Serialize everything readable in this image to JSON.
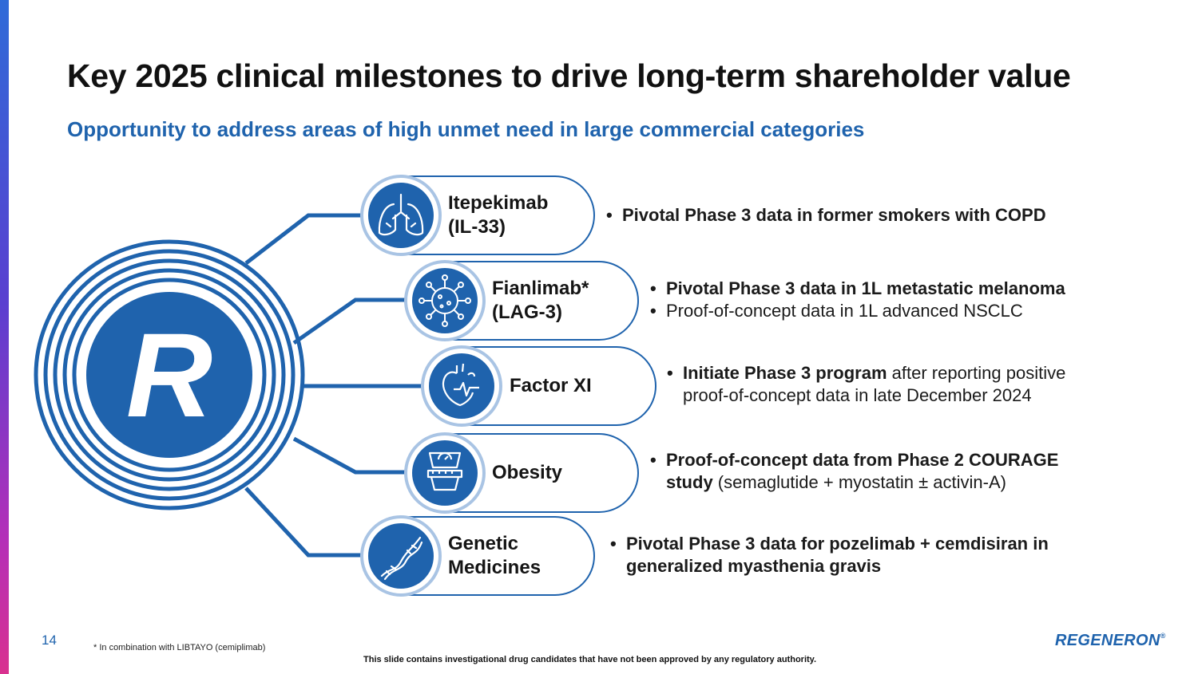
{
  "header": {
    "title": "Key 2025 clinical milestones to drive long-term shareholder value",
    "subtitle": "Opportunity to address areas of high unmet need in large commercial categories"
  },
  "logo": {
    "letter": "R"
  },
  "milestones": [
    {
      "label": "Itepekimab\n(IL-33)",
      "icon": "lungs-icon",
      "bullets": [
        {
          "strong": "Pivotal Phase 3 data in former smokers with COPD",
          "text": ""
        }
      ]
    },
    {
      "label": "Fianlimab*\n(LAG-3)",
      "icon": "cell-icon",
      "bullets": [
        {
          "strong": "Pivotal Phase 3 data in 1L metastatic melanoma",
          "text": ""
        },
        {
          "strong": "",
          "text": "Proof-of-concept data in 1L advanced NSCLC"
        }
      ]
    },
    {
      "label": "Factor XI",
      "icon": "heart-icon",
      "bullets": [
        {
          "strong": "Initiate Phase 3 program",
          "text": " after reporting positive proof-of-concept data in late December 2024"
        }
      ]
    },
    {
      "label": "Obesity",
      "icon": "scale-icon",
      "bullets": [
        {
          "strong": "Proof-of-concept data from Phase 2 COURAGE study",
          "text": " (semaglutide + myostatin ± activin-A)"
        }
      ]
    },
    {
      "label": "Genetic\nMedicines",
      "icon": "dna-icon",
      "bullets": [
        {
          "strong": "Pivotal Phase 3 data for pozelimab + cemdisiran in generalized myasthenia gravis",
          "text": ""
        }
      ]
    }
  ],
  "footer": {
    "page_number": "14",
    "footnote": "* In combination with LIBTAYO (cemiplimab)",
    "disclaimer": "This slide contains investigational drug candidates that have not been approved by any regulatory authority.",
    "brand": "REGENERON",
    "brand_mark": "®"
  },
  "colors": {
    "primary": "#1f63ad",
    "accent_gradient": [
      "#2f6bd8",
      "#b42fb8",
      "#d9318f"
    ]
  }
}
